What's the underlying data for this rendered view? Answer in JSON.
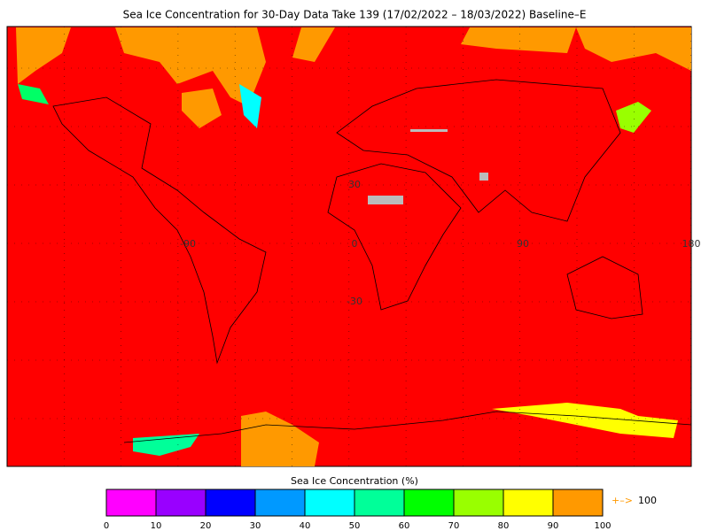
{
  "title": "Sea Ice Concentration for 30-Day Data Take 139 (17/02/2022 – 18/03/2022) Baseline–E",
  "map": {
    "grid_labels": [
      "30",
      "-90",
      "0",
      "90",
      "180",
      "-30"
    ]
  },
  "colorbar": {
    "title": "Sea Ice Concentration (%)",
    "ticks": [
      0,
      10,
      20,
      30,
      40,
      50,
      60,
      70,
      80,
      90,
      100
    ],
    "colors": [
      "#ff00ff",
      "#9900ff",
      "#0000ff",
      "#0099ff",
      "#00ffff",
      "#00ff99",
      "#00ff00",
      "#99ff00",
      "#ffff00",
      "#ff9900"
    ],
    "overflow_arrow": "+–>",
    "overflow_value": "100"
  }
}
